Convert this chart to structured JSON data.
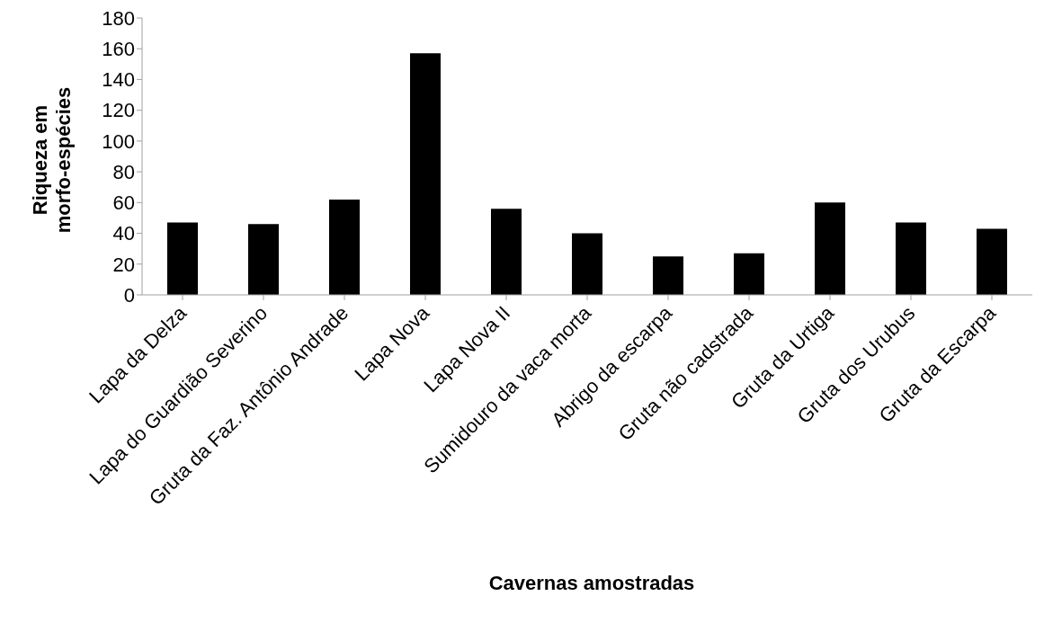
{
  "chart_data": {
    "type": "bar",
    "xlabel": "Cavernas amostradas",
    "ylabel": "Riqueza em morfo-espécies",
    "categories": [
      "Lapa da Delza",
      "Lapa do Guardião Severino",
      "Gruta da Faz. Antônio Andrade",
      "Lapa Nova",
      "Lapa Nova II",
      "Sumidouro da vaca morta",
      "Abrigo da escarpa",
      "Gruta não cadstrada",
      "Gruta da Urtiga",
      "Gruta dos Urubus",
      "Gruta da Escarpa"
    ],
    "values": [
      47,
      46,
      62,
      157,
      56,
      40,
      25,
      27,
      60,
      47,
      43
    ],
    "color": "#000000",
    "ylim": [
      0,
      180
    ],
    "yticks": [
      0,
      20,
      40,
      60,
      80,
      100,
      120,
      140,
      160,
      180
    ],
    "grid": false,
    "legend": false
  }
}
